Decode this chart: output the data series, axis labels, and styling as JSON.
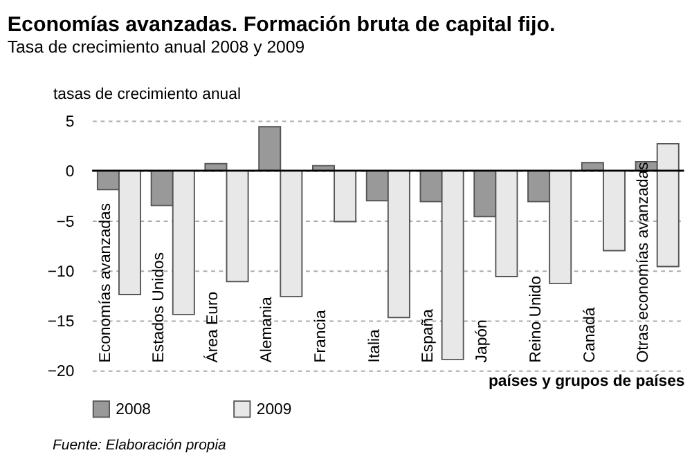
{
  "chart_data": {
    "type": "bar",
    "title": "Economías avanzadas. Formación bruta de capital fijo.",
    "subtitle": "Tasa de crecimiento anual 2008 y 2009",
    "ylabel": "tasas de crecimiento anual",
    "xlabel": "países y grupos de países",
    "categories": [
      "Economías avanzadas",
      "Estados Unidos",
      "Área Euro",
      "Alemania",
      "Francia",
      "Italia",
      "España",
      "Japón",
      "Reino Unido",
      "Canadá",
      "Otras economías avanzadas"
    ],
    "series": [
      {
        "name": "2008",
        "color": "#999999",
        "values": [
          -1.9,
          -3.5,
          0.7,
          4.4,
          0.5,
          -3.0,
          -3.1,
          -4.6,
          -3.1,
          0.8,
          0.9
        ]
      },
      {
        "name": "2009",
        "color": "#e8e8e8",
        "values": [
          -12.4,
          -14.4,
          -11.1,
          -12.6,
          -5.1,
          -14.7,
          -18.9,
          -10.6,
          -11.3,
          -8.0,
          12.3
        ],
        "base": [
          0,
          0,
          0,
          0,
          0,
          0,
          0,
          0,
          0,
          0,
          -9.6
        ]
      }
    ],
    "ylim": [
      -20,
      5
    ],
    "yticks": [
      -20,
      -15,
      -10,
      -5,
      0,
      5
    ],
    "grid": "y",
    "legend": "bottom left",
    "tick_labels": "y",
    "annotations": [
      "Fuente: Elaboración propia"
    ]
  }
}
